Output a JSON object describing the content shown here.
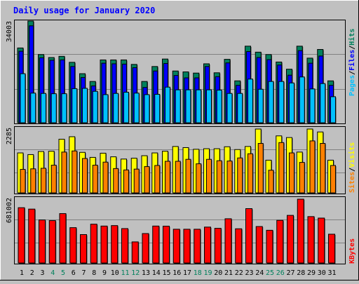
{
  "chart_data": [
    {
      "type": "bar",
      "panel": "hits-files-pages",
      "title": "Daily usage for January 2020",
      "categories": [
        "1",
        "2",
        "3",
        "4",
        "5",
        "6",
        "7",
        "8",
        "9",
        "10",
        "11",
        "12",
        "13",
        "14",
        "15",
        "16",
        "17",
        "18",
        "19",
        "20",
        "21",
        "22",
        "23",
        "24",
        "25",
        "26",
        "27",
        "28",
        "29",
        "30",
        "31"
      ],
      "y_tick_label": "34003",
      "ylim": [
        0,
        34003
      ],
      "legend": [
        "Pages",
        "/",
        "Files",
        "/",
        "Hits"
      ],
      "series": [
        {
          "name": "Hits",
          "color": "#00805c",
          "values": [
            25000,
            34003,
            22800,
            21800,
            22200,
            20200,
            16400,
            13800,
            21000,
            21000,
            21000,
            19500,
            13800,
            18800,
            21300,
            17300,
            17000,
            16600,
            19700,
            16700,
            21200,
            14000,
            25600,
            23600,
            22800,
            20300,
            17900,
            25600,
            21600,
            24500,
            14000
          ]
        },
        {
          "name": "Files",
          "color": "#0000ff",
          "values": [
            23900,
            32400,
            21700,
            20900,
            21000,
            18800,
            15100,
            12300,
            19900,
            19700,
            19600,
            18400,
            11800,
            17300,
            19800,
            15800,
            15000,
            15000,
            18800,
            15400,
            20000,
            12500,
            23800,
            21800,
            21100,
            19300,
            15900,
            24100,
            19900,
            22300,
            12500
          ]
        },
        {
          "name": "Pages",
          "color": "#00c0ff",
          "values": [
            16400,
            9900,
            9800,
            9700,
            9700,
            11400,
            11500,
            10500,
            9400,
            9800,
            10200,
            9900,
            9400,
            9500,
            11900,
            11000,
            11000,
            11000,
            11000,
            10900,
            9800,
            9800,
            14600,
            11200,
            13800,
            13800,
            13300,
            15300,
            11300,
            13100,
            8700
          ]
        }
      ]
    },
    {
      "type": "bar",
      "panel": "visits-sites",
      "categories": [
        "1",
        "2",
        "3",
        "4",
        "5",
        "6",
        "7",
        "8",
        "9",
        "10",
        "11",
        "12",
        "13",
        "14",
        "15",
        "16",
        "17",
        "18",
        "19",
        "20",
        "21",
        "22",
        "23",
        "24",
        "25",
        "26",
        "27",
        "28",
        "29",
        "30",
        "31"
      ],
      "y_tick_label": "2285",
      "ylim": [
        0,
        2285
      ],
      "legend": [
        "Sites",
        "/",
        "Visits"
      ],
      "series": [
        {
          "name": "Visits",
          "color": "#ffff00",
          "values": [
            1430,
            1370,
            1480,
            1490,
            1920,
            2010,
            1450,
            1270,
            1420,
            1290,
            1210,
            1240,
            1330,
            1430,
            1490,
            1660,
            1620,
            1560,
            1580,
            1580,
            1650,
            1550,
            1660,
            2285,
            1170,
            2040,
            1980,
            1460,
            2285,
            2180,
            1170
          ]
        },
        {
          "name": "Sites",
          "color": "#ff8000",
          "values": [
            840,
            860,
            880,
            990,
            1460,
            1500,
            1230,
            990,
            1100,
            870,
            820,
            850,
            940,
            980,
            1130,
            1130,
            1200,
            1040,
            1200,
            1150,
            1140,
            1250,
            1400,
            1770,
            810,
            1800,
            1430,
            1090,
            1860,
            1770,
            980
          ]
        }
      ]
    },
    {
      "type": "bar",
      "panel": "kbytes",
      "categories": [
        "1",
        "2",
        "3",
        "4",
        "5",
        "6",
        "7",
        "8",
        "9",
        "10",
        "11",
        "12",
        "13",
        "14",
        "15",
        "16",
        "17",
        "18",
        "19",
        "20",
        "21",
        "22",
        "23",
        "24",
        "25",
        "26",
        "27",
        "28",
        "29",
        "30",
        "31"
      ],
      "y_tick_label": "681002",
      "ylim": [
        0,
        681002
      ],
      "legend": [
        "KBytes"
      ],
      "series": [
        {
          "name": "KBytes",
          "color": "#ff0000",
          "values": [
            590000,
            575000,
            459000,
            452000,
            527000,
            377000,
            303000,
            414000,
            394000,
            399000,
            367000,
            225000,
            314000,
            394000,
            393000,
            360000,
            360000,
            360000,
            383000,
            370000,
            472000,
            365000,
            580000,
            389000,
            349000,
            455000,
            508000,
            681002,
            495000,
            479000,
            307000
          ]
        }
      ]
    }
  ],
  "x_axis": {
    "weekend_days": [
      "4",
      "5",
      "11",
      "12",
      "18",
      "19",
      "25",
      "26"
    ],
    "weekday_color": "#000000",
    "weekend_color": "#00805c"
  },
  "colors": {
    "background": "#c0c0c0",
    "title": "#0000ff",
    "grid": "#808080",
    "legend_pages": "#00c0ff",
    "legend_files": "#0000ff",
    "legend_hits": "#00805c",
    "legend_sites": "#ff8000",
    "legend_visits": "#ffff00",
    "legend_kbytes": "#ff0000"
  }
}
